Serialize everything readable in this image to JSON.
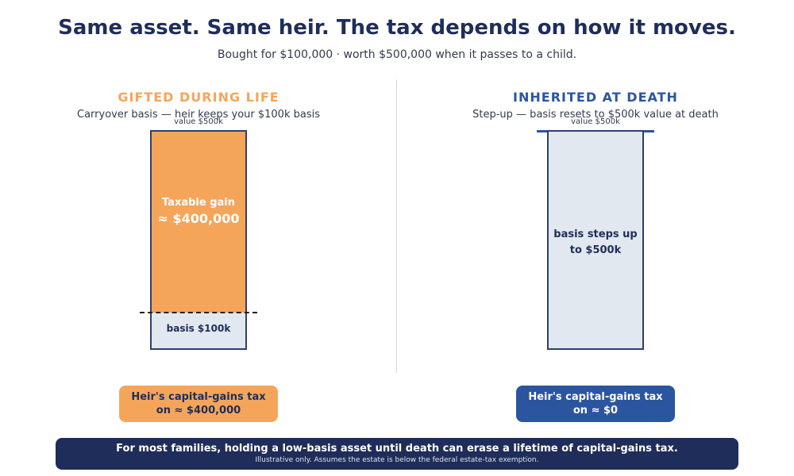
{
  "header": {
    "title": "Same asset. Same heir. The tax depends on how it moves.",
    "subtitle": "Bought for $100,000 · worth $500,000 when it passes to a child."
  },
  "colors": {
    "navy": "#1f2d5a",
    "orange": "#f5a55a",
    "blue": "#2c55a0",
    "light_fill": "#e1e8ef"
  },
  "left": {
    "heading": "GIFTED DURING LIFE",
    "heading_color": "#f5a55a",
    "description": "Carryover basis — heir keeps your $100k basis",
    "value_label": "value $500k",
    "gain_line1": "Taxable gain",
    "gain_line2": "≈ $400,000",
    "basis_label": "basis $100k",
    "tax_line1": "Heir's capital-gains tax",
    "tax_line2": "on ≈ $400,000",
    "basis_value": 100000,
    "total_value": 500000
  },
  "right": {
    "heading": "INHERITED AT DEATH",
    "heading_color": "#2c55a0",
    "description": "Step-up — basis resets to $500k value at death",
    "value_label": "value $500k",
    "step_line1": "basis steps up",
    "step_line2": "to $500k",
    "tax_line1": "Heir's capital-gains tax",
    "tax_line2": "on ≈ $0",
    "basis_value": 500000,
    "total_value": 500000
  },
  "banner": {
    "main": "For most families, holding a low-basis asset until death can erase a lifetime of capital-gains tax.",
    "note": "Illustrative only. Assumes the estate is below the federal estate-tax exemption."
  }
}
